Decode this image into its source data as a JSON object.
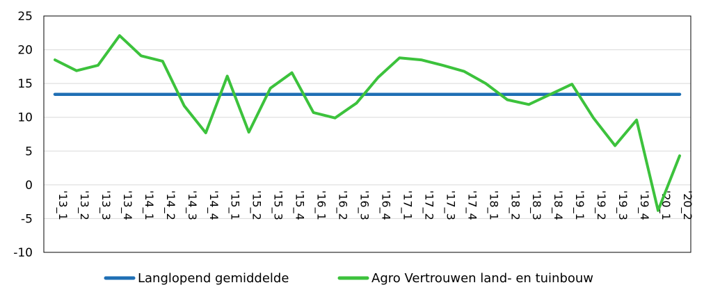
{
  "chart_data": {
    "type": "line",
    "title": "",
    "xlabel": "",
    "ylabel": "",
    "ylim": [
      -10,
      25
    ],
    "yticks": [
      -10,
      -5,
      0,
      5,
      10,
      15,
      20,
      25
    ],
    "grid": true,
    "legend_position": "bottom",
    "categories": [
      "'13_1",
      "'13_2",
      "'13_3",
      "'13_4",
      "'14_1",
      "'14_2",
      "'14_3",
      "'14_4",
      "'15_1",
      "'15_2",
      "'15_3",
      "'15_4",
      "'16_1",
      "'16_2",
      "'16_3",
      "'16_4",
      "'17_1",
      "'17_2",
      "'17_3",
      "'17_4",
      "'18_1",
      "'18_2",
      "'18_3",
      "'18_4",
      "'19_1",
      "'19_2",
      "'19_3",
      "'19_4",
      "'20_1",
      "'20_2"
    ],
    "series": [
      {
        "name": "Langlopend gemiddelde",
        "color": "#1f6fb4",
        "values": [
          13.4,
          13.4,
          13.4,
          13.4,
          13.4,
          13.4,
          13.4,
          13.4,
          13.4,
          13.4,
          13.4,
          13.4,
          13.4,
          13.4,
          13.4,
          13.4,
          13.4,
          13.4,
          13.4,
          13.4,
          13.4,
          13.4,
          13.4,
          13.4,
          13.4,
          13.4,
          13.4,
          13.4,
          13.4,
          13.4
        ]
      },
      {
        "name": "Agro Vertrouwen land- en tuinbouw",
        "color": "#3cc23c",
        "values": [
          18.5,
          16.9,
          17.7,
          22.1,
          19.1,
          18.3,
          11.7,
          7.7,
          16.1,
          7.8,
          14.3,
          16.6,
          10.7,
          9.9,
          12.1,
          15.9,
          18.8,
          18.5,
          17.7,
          16.8,
          15.0,
          12.6,
          11.9,
          13.4,
          14.9,
          9.9,
          5.8,
          9.6,
          -3.8,
          4.3
        ]
      }
    ]
  }
}
